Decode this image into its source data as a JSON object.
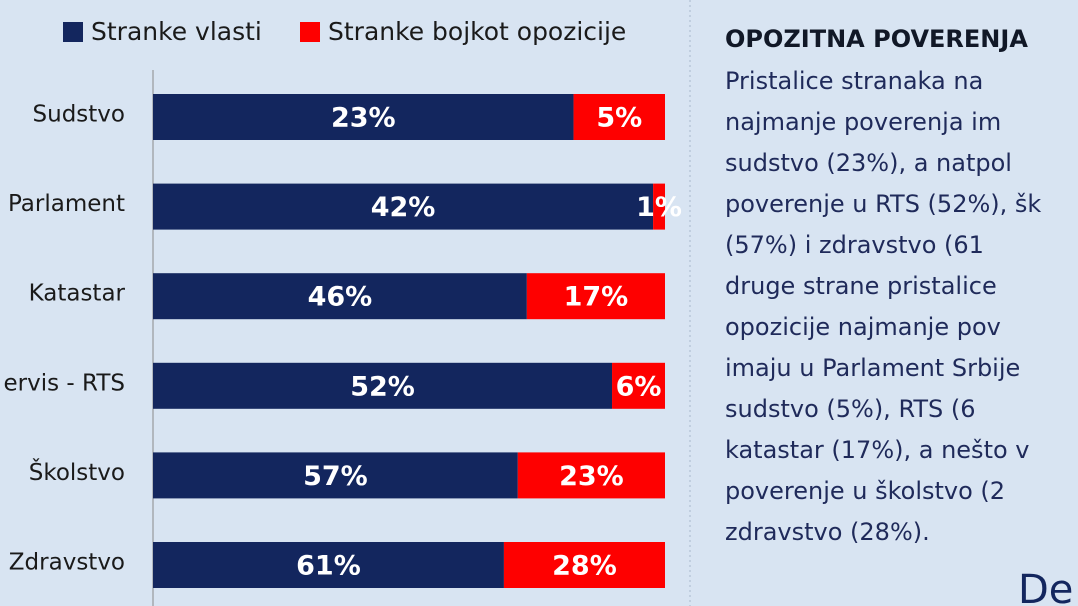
{
  "chart_data": {
    "type": "bar",
    "orientation": "horizontal",
    "stacking": "percent",
    "categories": [
      "Sudstvo",
      "Parlament",
      "Katastar",
      "ervis - RTS",
      "Školstvo",
      "Zdravstvo"
    ],
    "series": [
      {
        "name": "Stranke vlasti",
        "color": "#13265e",
        "values": [
          23,
          42,
          46,
          52,
          57,
          61
        ],
        "value_labels": [
          "23%",
          "42%",
          "46%",
          "52%",
          "57%",
          "61%"
        ]
      },
      {
        "name": "Stranke bojkot opozicije",
        "color": "#fe0000",
        "values": [
          5,
          1,
          17,
          6,
          23,
          28
        ],
        "value_labels": [
          "5%",
          "1%",
          "17%",
          "6%",
          "23%",
          "28%"
        ]
      }
    ],
    "legend": "top"
  },
  "text_panel": {
    "title": "OPOZITNA POVERENJA",
    "lines": [
      "Pristalice stranaka na",
      "najmanje poverenja im",
      "sudstvo (23%), a natpol",
      "poverenje u RTS (52%), šk",
      "(57%) i zdravstvo (61",
      "druge strane pristalice",
      "opozicije najmanje pov",
      "imaju u Parlament Srbije",
      "sudstvo (5%), RTS (6",
      "katastar (17%), a nešto v",
      "poverenje u školstvo (2",
      "zdravstvo (28%)."
    ],
    "logo_text": "De"
  }
}
